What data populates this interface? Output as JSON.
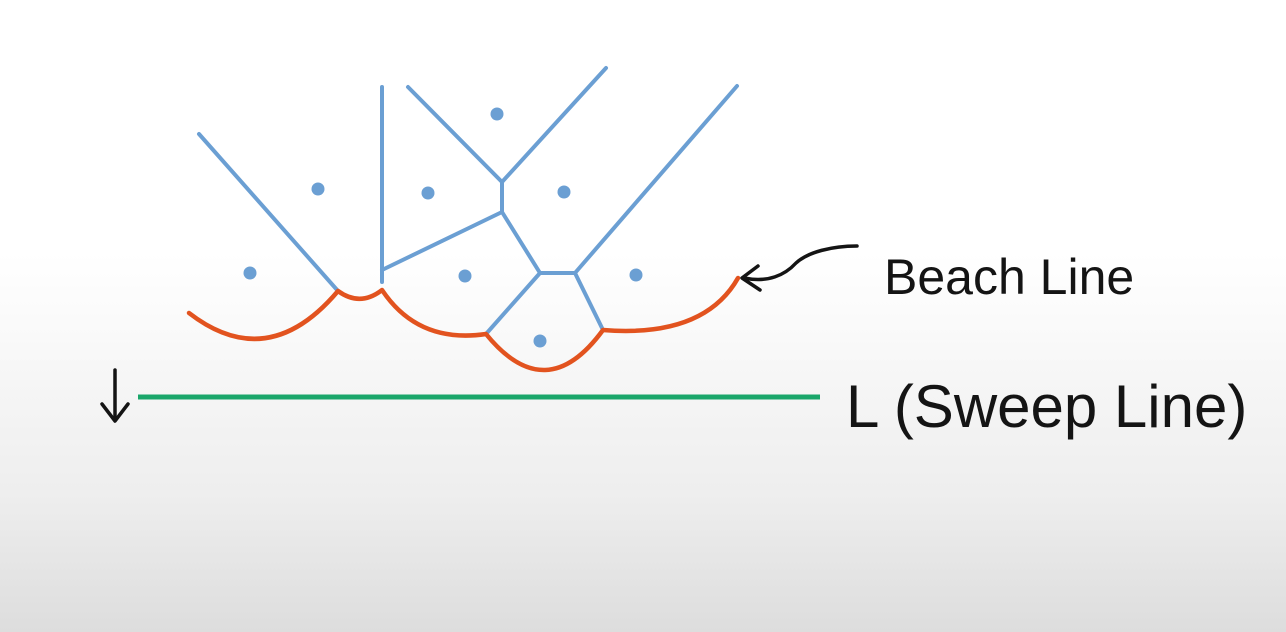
{
  "labels": {
    "beach_line": "Beach Line",
    "sweep_line": "L (Sweep Line)"
  },
  "colors": {
    "voronoi_edges": "#6b9fd3",
    "sites": "#6b9fd3",
    "beach_line": "#e2531f",
    "sweep_line": "#1aa66a",
    "annotation": "#141414"
  }
}
